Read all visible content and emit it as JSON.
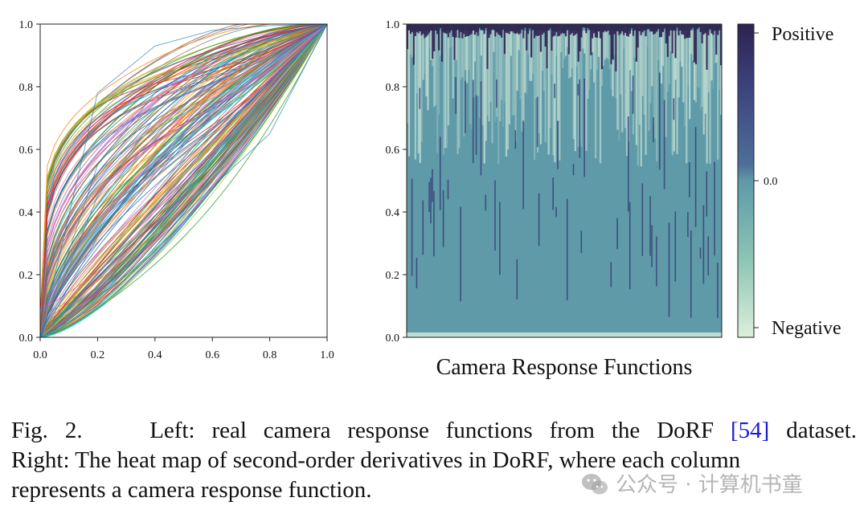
{
  "chart_data": [
    {
      "type": "line",
      "title": "",
      "xlabel": "",
      "ylabel": "",
      "xlim": [
        0.0,
        1.0
      ],
      "ylim": [
        0.0,
        1.0
      ],
      "x_ticks": [
        "0.0",
        "0.2",
        "0.4",
        "0.6",
        "0.8",
        "1.0"
      ],
      "y_ticks": [
        "0.0",
        "0.2",
        "0.4",
        "0.6",
        "0.8",
        "1.0"
      ],
      "grid": false,
      "legend": "none",
      "series_count": 201,
      "curve_family": "monotonic curves from (0,0) to (1,1), mostly concave, shown as many thin multicolored lines",
      "palette": [
        "#1f77b4",
        "#ff7f0e",
        "#2ca02c",
        "#d62728",
        "#9467bd",
        "#8c564b",
        "#e377c2",
        "#7f7f7f",
        "#bcbd22",
        "#17becf"
      ],
      "series": [
        {
          "x": [
            0.0,
            0.2,
            0.4,
            0.6,
            0.8,
            1.0
          ],
          "y": [
            0.0,
            0.78,
            0.93,
            0.98,
            0.995,
            1.0
          ]
        },
        {
          "x": [
            0.0,
            0.2,
            0.4,
            0.6,
            0.8,
            1.0
          ],
          "y": [
            0.0,
            0.55,
            0.78,
            0.9,
            0.97,
            1.0
          ]
        },
        {
          "x": [
            0.0,
            0.2,
            0.4,
            0.6,
            0.8,
            1.0
          ],
          "y": [
            0.0,
            0.45,
            0.7,
            0.85,
            0.95,
            1.0
          ]
        },
        {
          "x": [
            0.0,
            0.2,
            0.4,
            0.6,
            0.8,
            1.0
          ],
          "y": [
            0.0,
            0.32,
            0.58,
            0.78,
            0.92,
            1.0
          ]
        },
        {
          "x": [
            0.0,
            0.2,
            0.4,
            0.6,
            0.8,
            1.0
          ],
          "y": [
            0.0,
            0.2,
            0.42,
            0.63,
            0.82,
            1.0
          ]
        },
        {
          "x": [
            0.0,
            0.2,
            0.4,
            0.6,
            0.8,
            1.0
          ],
          "y": [
            0.0,
            0.1,
            0.3,
            0.48,
            0.65,
            1.0
          ]
        }
      ]
    },
    {
      "type": "heatmap",
      "title": "",
      "xlabel": "Camera Response Functions",
      "ylabel": "",
      "ylim": [
        0.0,
        1.0
      ],
      "y_ticks": [
        "0.0",
        "0.2",
        "0.4",
        "0.6",
        "0.8",
        "1.0"
      ],
      "columns": 201,
      "description_values": "second-order derivative of each camera response function",
      "colorbar": {
        "tick_labels": [
          "Positive",
          "0.0",
          "Negative"
        ],
        "colors": {
          "positive": "#2d2250",
          "zero": "#5e9aa8",
          "negative": "#dcefdc"
        }
      }
    }
  ],
  "caption": {
    "line1_prefix": "Fig. 2.",
    "line1_text": "Left: real camera response functions from the DoRF",
    "ref": "[54]",
    "line1_suffix": "dataset.",
    "line2": "Right: The heat map of second-order derivatives in DoRF, where each column",
    "line3": "represents a camera response function."
  },
  "watermark": {
    "text": "公众号 · 计算机书童",
    "icon": "wechat-icon"
  }
}
